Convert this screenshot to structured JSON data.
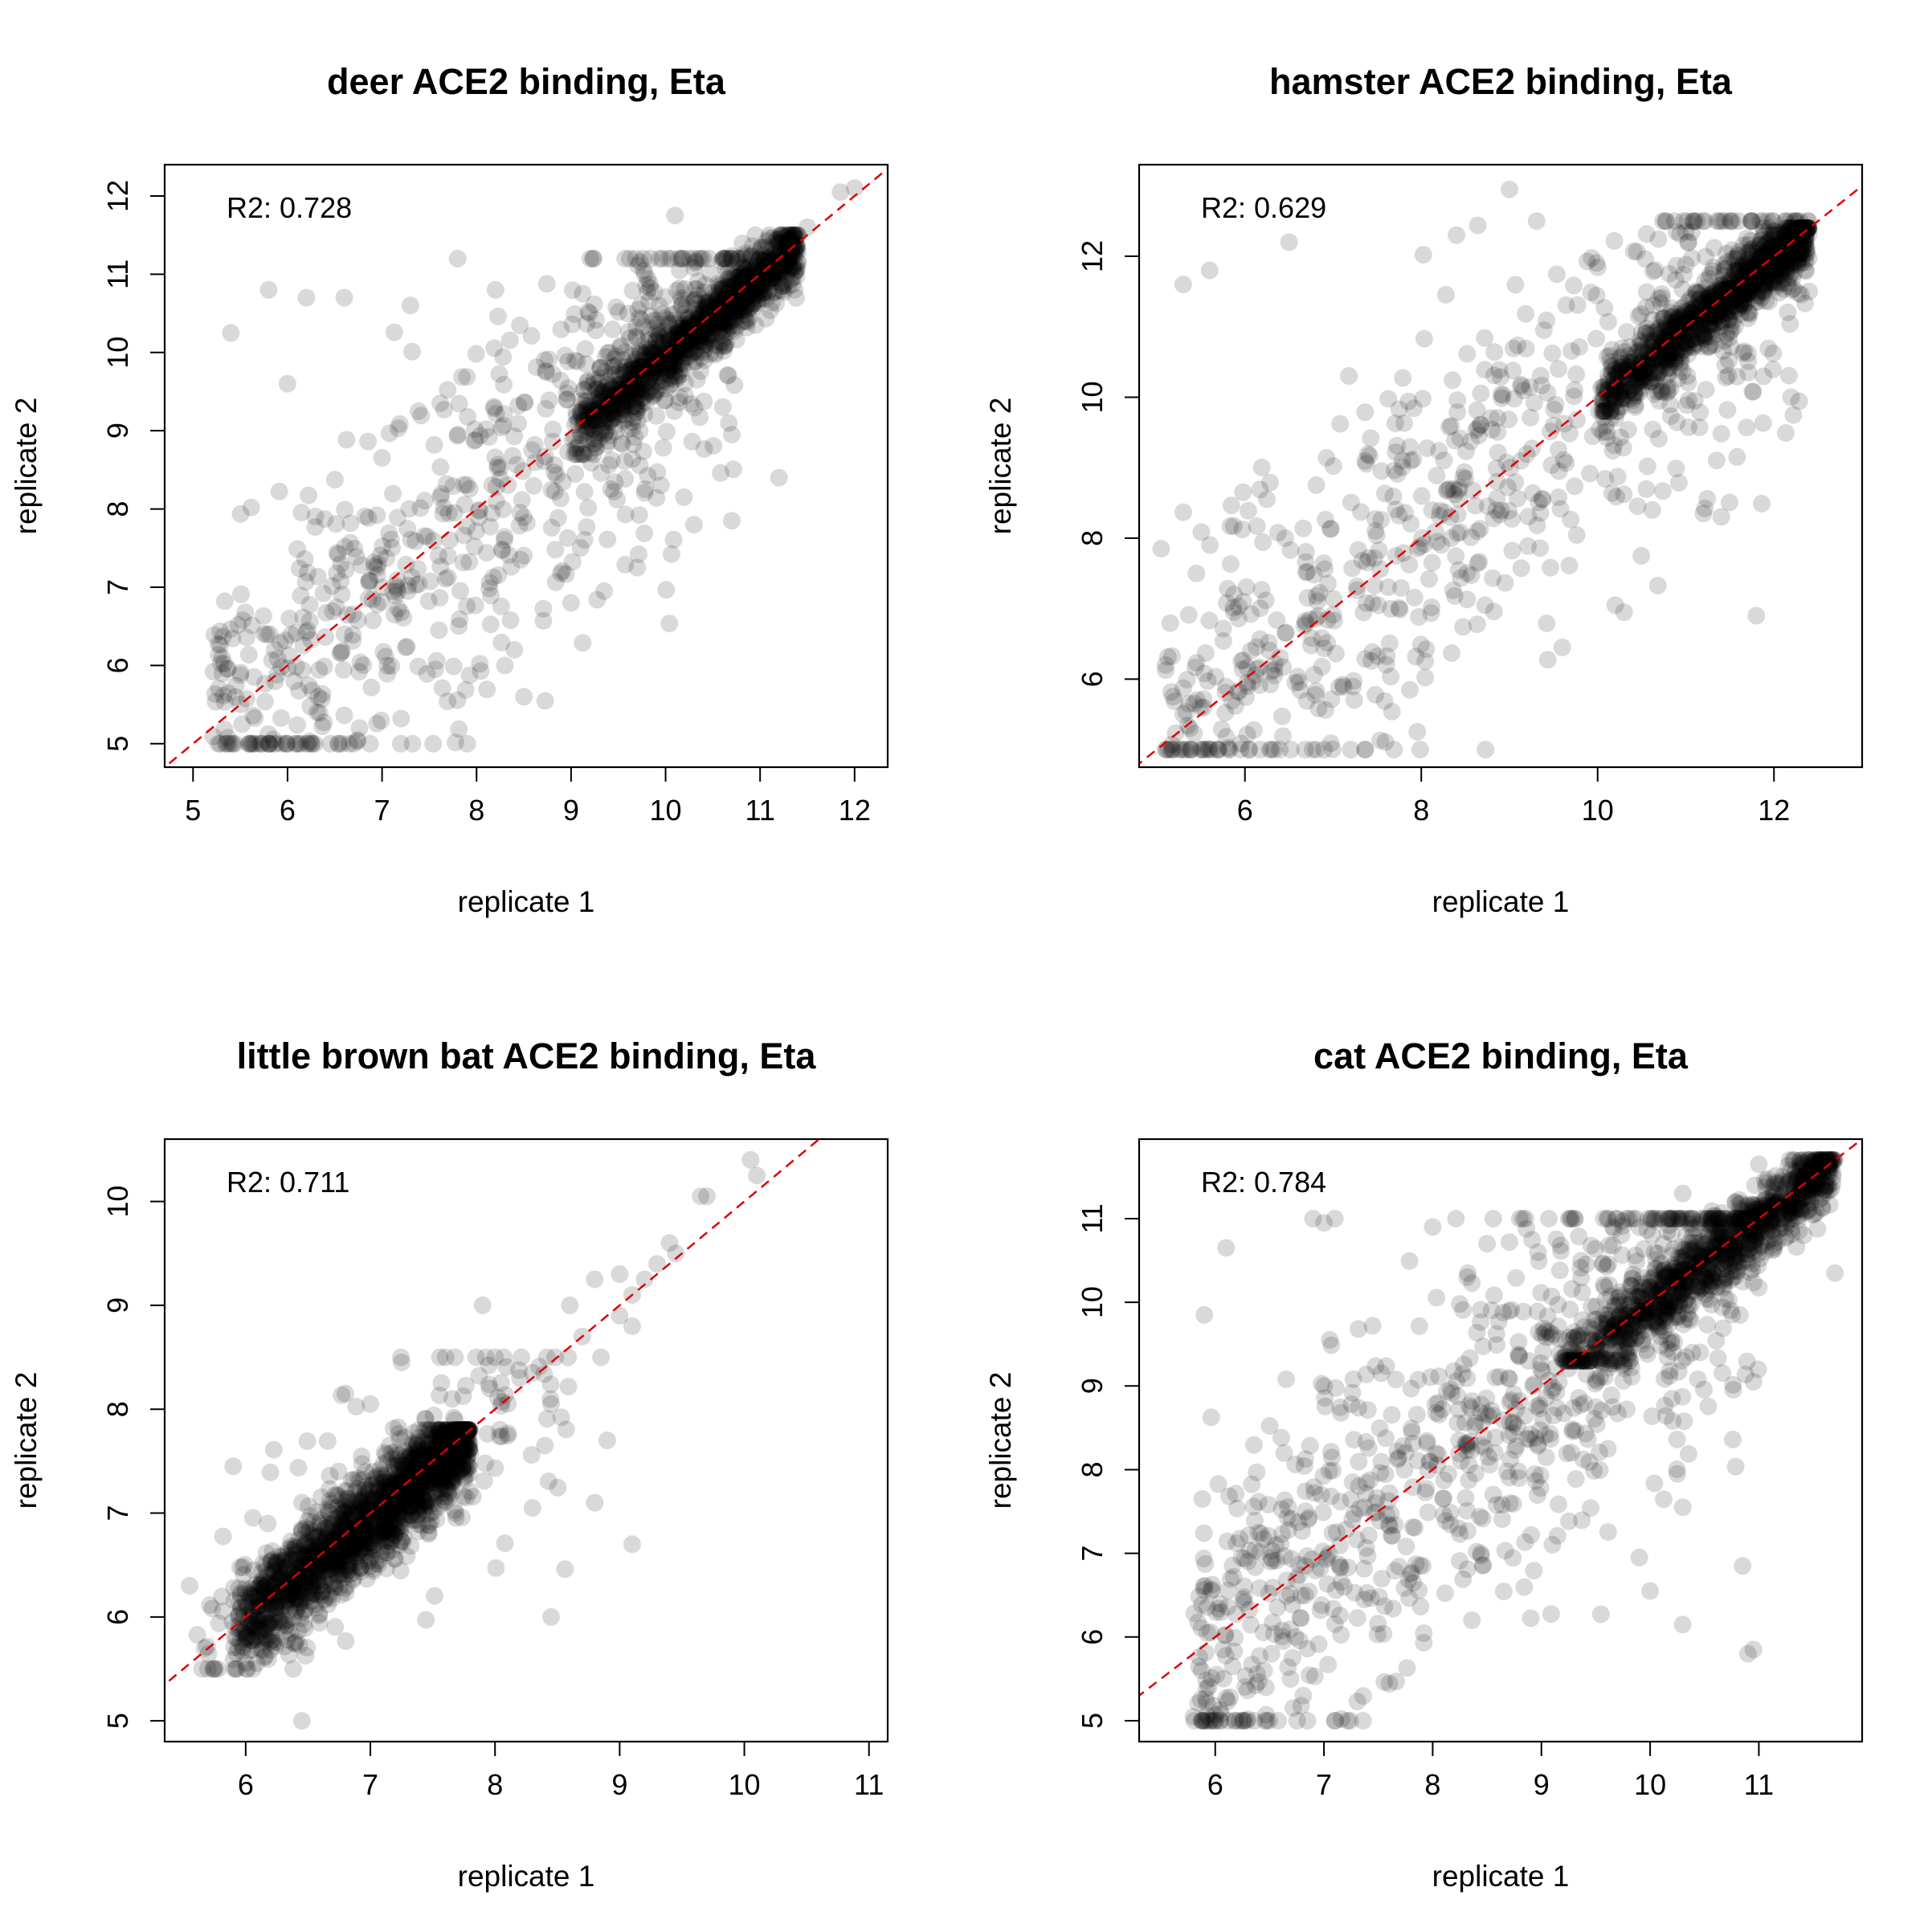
{
  "figure": {
    "background": "#ffffff",
    "point_color": "#000000",
    "point_opacity": 0.15,
    "identity_line_color": "#e00000"
  },
  "chart_data": [
    {
      "type": "scatter",
      "title": "deer ACE2 binding, Eta",
      "xlabel": "replicate 1",
      "ylabel": "replicate 2",
      "annotation": "R2: 0.728",
      "xlim": [
        4.7,
        12.35
      ],
      "ylim": [
        4.7,
        12.4
      ],
      "xticks": [
        5,
        6,
        7,
        8,
        9,
        10,
        11,
        12
      ],
      "yticks": [
        5,
        6,
        7,
        8,
        9,
        10,
        11,
        12
      ],
      "reference_line": "y = x",
      "dense_cloud": {
        "x_range": [
          9.0,
          11.4
        ],
        "y_range": [
          8.9,
          11.3
        ],
        "n": 1300
      },
      "sparse_cloud": {
        "x_range": [
          5.2,
          10.8
        ],
        "y_range": [
          5.0,
          11.2
        ],
        "n": 650
      },
      "points": [
        [
          5.4,
          10.25
        ],
        [
          5.8,
          10.8
        ],
        [
          6.7,
          5.0
        ],
        [
          7.9,
          5.0
        ],
        [
          10.1,
          11.75
        ],
        [
          11.2,
          8.4
        ],
        [
          10.7,
          8.95
        ],
        [
          10.3,
          7.8
        ],
        [
          10.7,
          7.85
        ],
        [
          9.7,
          7.25
        ],
        [
          9.35,
          6.95
        ],
        [
          12.0,
          12.1
        ],
        [
          11.85,
          12.05
        ],
        [
          11.5,
          11.6
        ],
        [
          8.3,
          6.0
        ],
        [
          8.4,
          6.2
        ],
        [
          6.6,
          10.7
        ],
        [
          6.2,
          10.7
        ],
        [
          7.8,
          11.2
        ],
        [
          8.2,
          10.8
        ],
        [
          7.3,
          10.6
        ],
        [
          8.5,
          5.6
        ],
        [
          9.0,
          6.8
        ],
        [
          6.0,
          9.6
        ],
        [
          10.95,
          10.35
        ],
        [
          11.3,
          10.85
        ]
      ]
    },
    {
      "type": "scatter",
      "title": "hamster ACE2 binding, Eta",
      "xlabel": "replicate 1",
      "ylabel": "replicate 2",
      "annotation": "R2: 0.629",
      "xlim": [
        4.8,
        13.0
      ],
      "ylim": [
        4.75,
        13.3
      ],
      "xticks": [
        6,
        8,
        10,
        12
      ],
      "yticks": [
        6,
        8,
        10,
        12
      ],
      "reference_line": "y = x",
      "dense_cloud": {
        "x_range": [
          10.0,
          12.4
        ],
        "y_range": [
          10.0,
          12.2
        ],
        "n": 1200
      },
      "sparse_cloud": {
        "x_range": [
          5.1,
          12.4
        ],
        "y_range": [
          5.0,
          12.5
        ],
        "n": 700
      },
      "points": [
        [
          9.0,
          12.95
        ],
        [
          6.5,
          12.2
        ],
        [
          5.3,
          11.6
        ],
        [
          5.6,
          11.8
        ],
        [
          5.7,
          5.0
        ],
        [
          5.1,
          6.2
        ],
        [
          5.05,
          7.85
        ],
        [
          11.8,
          6.9
        ],
        [
          11.2,
          8.35
        ],
        [
          9.6,
          6.45
        ],
        [
          10.2,
          7.05
        ],
        [
          10.3,
          6.95
        ],
        [
          10.2,
          9.7
        ],
        [
          12.1,
          12.0
        ],
        [
          12.4,
          11.5
        ],
        [
          11.0,
          12.35
        ],
        [
          8.4,
          12.3
        ],
        [
          5.5,
          5.6
        ],
        [
          5.3,
          5.5
        ],
        [
          5.45,
          7.5
        ]
      ]
    },
    {
      "type": "scatter",
      "title": "little brown bat ACE2 binding, Eta",
      "xlabel": "replicate 1",
      "ylabel": "replicate 2",
      "annotation": "R2: 0.711",
      "xlim": [
        5.35,
        11.15
      ],
      "ylim": [
        4.8,
        10.6
      ],
      "xticks": [
        6,
        7,
        8,
        9,
        10,
        11
      ],
      "yticks": [
        5,
        6,
        7,
        8,
        9,
        10
      ],
      "reference_line": "y = x",
      "dense_cloud": {
        "x_range": [
          5.9,
          7.8
        ],
        "y_range": [
          5.7,
          7.6
        ],
        "n": 1800
      },
      "sparse_cloud": {
        "x_range": [
          5.6,
          8.6
        ],
        "y_range": [
          5.5,
          8.5
        ],
        "n": 200
      },
      "points": [
        [
          10.05,
          10.4
        ],
        [
          10.1,
          10.25
        ],
        [
          9.7,
          10.05
        ],
        [
          9.65,
          10.05
        ],
        [
          9.4,
          9.6
        ],
        [
          9.45,
          9.5
        ],
        [
          9.3,
          9.4
        ],
        [
          9.2,
          9.25
        ],
        [
          9.0,
          9.3
        ],
        [
          9.1,
          9.1
        ],
        [
          8.8,
          9.25
        ],
        [
          9.0,
          8.9
        ],
        [
          9.1,
          8.8
        ],
        [
          8.85,
          8.5
        ],
        [
          8.6,
          9.0
        ],
        [
          8.7,
          8.7
        ],
        [
          7.9,
          9.0
        ],
        [
          8.0,
          8.5
        ],
        [
          7.25,
          8.45
        ],
        [
          8.2,
          8.3
        ],
        [
          8.3,
          8.35
        ],
        [
          8.45,
          8.05
        ],
        [
          8.4,
          7.65
        ],
        [
          8.8,
          7.1
        ],
        [
          8.9,
          7.7
        ],
        [
          9.1,
          6.7
        ],
        [
          8.45,
          6.0
        ],
        [
          6.45,
          5.0
        ],
        [
          5.55,
          6.3
        ],
        [
          5.9,
          7.45
        ],
        [
          6.8,
          8.15
        ],
        [
          7.0,
          8.05
        ],
        [
          8.3,
          7.05
        ]
      ]
    },
    {
      "type": "scatter",
      "title": "cat ACE2 binding, Eta",
      "xlabel": "replicate 1",
      "ylabel": "replicate 2",
      "annotation": "R2: 0.784",
      "xlim": [
        5.3,
        11.95
      ],
      "ylim": [
        4.75,
        11.95
      ],
      "xticks": [
        6,
        7,
        8,
        9,
        10,
        11
      ],
      "yticks": [
        5,
        6,
        7,
        8,
        9,
        10,
        11
      ],
      "reference_line": "y = x",
      "dense_cloud": {
        "x_range": [
          9.2,
          11.7
        ],
        "y_range": [
          9.5,
          11.5
        ],
        "n": 1100
      },
      "sparse_cloud": {
        "x_range": [
          5.8,
          11.0
        ],
        "y_range": [
          5.0,
          11.0
        ],
        "n": 900
      },
      "points": [
        [
          7.1,
          5.0
        ],
        [
          5.9,
          9.85
        ],
        [
          6.1,
          10.65
        ],
        [
          6.9,
          11.0
        ],
        [
          7.0,
          10.95
        ],
        [
          7.1,
          11.0
        ],
        [
          8.0,
          10.9
        ],
        [
          8.5,
          10.7
        ],
        [
          10.85,
          6.85
        ],
        [
          10.9,
          5.8
        ],
        [
          10.95,
          5.85
        ],
        [
          10.3,
          7.55
        ],
        [
          10.3,
          6.15
        ],
        [
          10.0,
          6.55
        ],
        [
          10.95,
          9.05
        ],
        [
          11.7,
          10.35
        ],
        [
          11.5,
          11.4
        ],
        [
          11.0,
          11.65
        ],
        [
          10.3,
          11.3
        ],
        [
          9.9,
          6.95
        ],
        [
          10.25,
          7.95
        ],
        [
          5.8,
          5.05
        ]
      ]
    }
  ]
}
